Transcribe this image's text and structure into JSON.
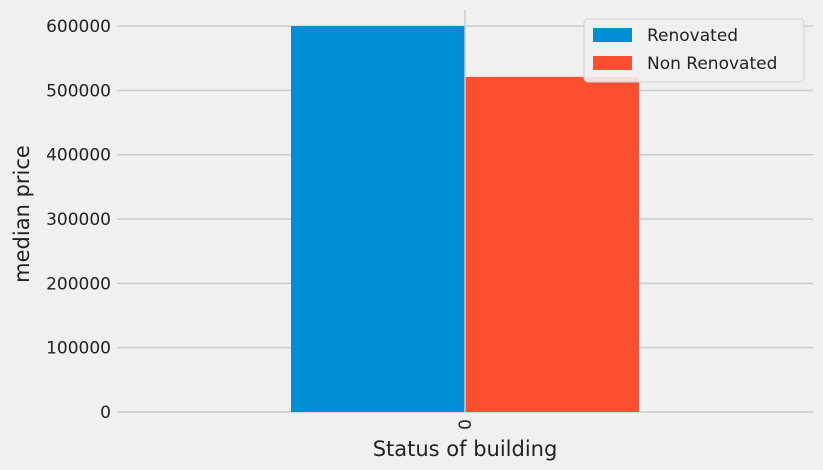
{
  "chart_data": {
    "type": "bar",
    "categories": [
      "0"
    ],
    "series": [
      {
        "name": "Renovated",
        "values": [
          600000
        ],
        "color": "#008fd5"
      },
      {
        "name": "Non Renovated",
        "values": [
          521000
        ],
        "color": "#fc4f30"
      }
    ],
    "xlabel": "Status of building",
    "ylabel": "median price",
    "ylim": [
      0,
      625000
    ],
    "yticks": [
      0,
      100000,
      200000,
      300000,
      400000,
      500000,
      600000
    ],
    "ytick_labels": [
      "0",
      "100000",
      "200000",
      "300000",
      "400000",
      "500000",
      "600000"
    ],
    "grid": true,
    "legend_position": "top-right",
    "x_tick_rotation": "vertical"
  }
}
